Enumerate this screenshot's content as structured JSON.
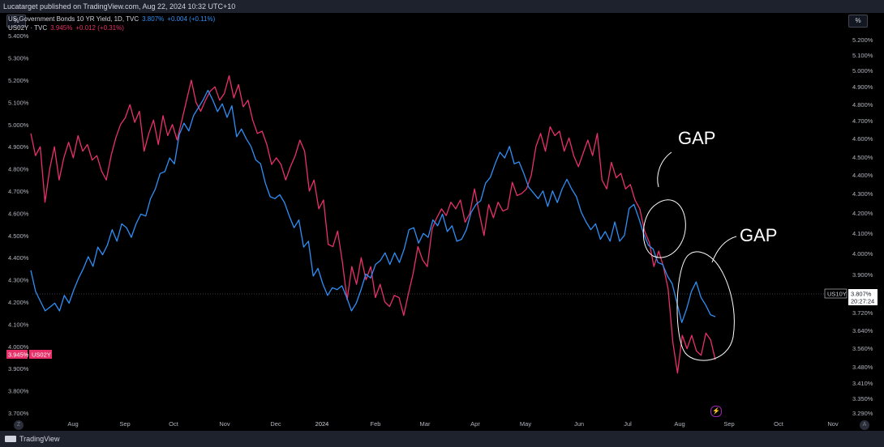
{
  "header": {
    "published": "Lucatarget published on TradingView.com, Aug 22, 2024 10:32 UTC+10"
  },
  "legend": {
    "row1": {
      "title": "US Government Bonds 10 YR Yield, 1D, TVC",
      "value": "3.807%",
      "change": "+0.004 (+0.11%)"
    },
    "row2": {
      "title": "US02Y · TVC",
      "value": "3.945%",
      "change": "+0.012 (+0.31%)"
    }
  },
  "unit_label": "%",
  "annotations": {
    "gap1": "GAP",
    "gap2": "GAP"
  },
  "footer": {
    "brand": "TradingView",
    "z": "Z",
    "a": "A",
    "flash": "⚡"
  },
  "colors": {
    "us10y": "#2f8ff5",
    "us02y": "#e8316a",
    "background": "#000000",
    "annotation": "#ffffff"
  },
  "chart_data": {
    "type": "line",
    "title": "US Government Bonds 10 YR Yield, 1D, TVC",
    "x_ticks": [
      "Aug",
      "Sep",
      "Oct",
      "Nov",
      "Dec",
      "2024",
      "Feb",
      "Mar",
      "Apr",
      "May",
      "Jun",
      "Jul",
      "Aug",
      "Sep",
      "Oct",
      "Nov"
    ],
    "left_axis": {
      "ticks": [
        "5.400%",
        "5.300%",
        "5.200%",
        "5.100%",
        "5.000%",
        "4.900%",
        "4.800%",
        "4.700%",
        "4.600%",
        "4.500%",
        "4.400%",
        "4.300%",
        "4.200%",
        "4.100%",
        "4.000%",
        "3.900%",
        "3.800%",
        "3.700%"
      ],
      "ylim": [
        3.67,
        5.43
      ]
    },
    "right_axis": {
      "ticks": [
        "5.200%",
        "5.100%",
        "5.000%",
        "4.900%",
        "4.800%",
        "4.700%",
        "4.600%",
        "4.500%",
        "4.400%",
        "4.300%",
        "4.200%",
        "4.100%",
        "4.000%",
        "3.900%",
        "3.720%",
        "3.640%",
        "3.560%",
        "3.480%",
        "3.410%",
        "3.350%",
        "3.290%"
      ]
    },
    "last_price": {
      "us10y_label": "US10Y",
      "us10y_value": "3.807%",
      "us10y_countdown": "20:27:24",
      "us02y_value": "3.945%",
      "us02y_label": "US02Y"
    },
    "series": [
      {
        "name": "US02Y",
        "axis": "left",
        "color": "#e8316a",
        "values": [
          4.96,
          4.86,
          4.9,
          4.65,
          4.8,
          4.9,
          4.75,
          4.85,
          4.92,
          4.85,
          4.95,
          4.88,
          4.91,
          4.84,
          4.86,
          4.79,
          4.75,
          4.86,
          4.94,
          5.0,
          5.03,
          5.09,
          5.01,
          5.06,
          4.88,
          4.96,
          5.02,
          4.91,
          5.04,
          4.95,
          5.0,
          4.93,
          5.02,
          5.11,
          5.2,
          5.1,
          5.06,
          5.11,
          5.15,
          5.17,
          5.11,
          5.14,
          5.22,
          5.12,
          5.18,
          5.08,
          5.11,
          5.02,
          4.96,
          4.97,
          4.91,
          4.82,
          4.85,
          4.82,
          4.75,
          4.81,
          4.86,
          4.93,
          4.88,
          4.7,
          4.75,
          4.62,
          4.66,
          4.46,
          4.45,
          4.52,
          4.38,
          4.21,
          4.36,
          4.28,
          4.4,
          4.3,
          4.36,
          4.22,
          4.28,
          4.2,
          4.18,
          4.23,
          4.22,
          4.14,
          4.24,
          4.33,
          4.45,
          4.39,
          4.36,
          4.53,
          4.58,
          4.62,
          4.59,
          4.65,
          4.62,
          4.66,
          4.56,
          4.6,
          4.71,
          4.6,
          4.5,
          4.64,
          4.58,
          4.65,
          4.61,
          4.62,
          4.74,
          4.68,
          4.69,
          4.71,
          4.77,
          4.9,
          4.96,
          4.88,
          4.99,
          4.95,
          4.97,
          4.88,
          4.94,
          4.86,
          4.81,
          4.87,
          4.93,
          4.86,
          4.96,
          4.75,
          4.71,
          4.83,
          4.76,
          4.78,
          4.71,
          4.73,
          4.66,
          4.62,
          4.52,
          4.47,
          4.36,
          4.43,
          4.36,
          4.26,
          4.02,
          3.88,
          4.05,
          3.99,
          4.05,
          3.98,
          3.96,
          4.06,
          4.03,
          3.94
        ]
      },
      {
        "name": "US10Y",
        "axis": "right",
        "color": "#2f8ff5",
        "values": [
          4.05,
          3.94,
          3.89,
          3.84,
          3.86,
          3.88,
          3.84,
          3.92,
          3.88,
          3.95,
          4.01,
          4.06,
          4.12,
          4.07,
          4.17,
          4.13,
          4.18,
          4.26,
          4.2,
          4.29,
          4.27,
          4.22,
          4.29,
          4.34,
          4.33,
          4.42,
          4.47,
          4.55,
          4.56,
          4.63,
          4.6,
          4.75,
          4.81,
          4.77,
          4.85,
          4.89,
          4.93,
          4.98,
          4.93,
          4.87,
          4.91,
          4.84,
          4.9,
          4.74,
          4.78,
          4.73,
          4.69,
          4.62,
          4.6,
          4.5,
          4.43,
          4.42,
          4.44,
          4.4,
          4.33,
          4.27,
          4.31,
          4.17,
          4.2,
          4.02,
          4.06,
          3.98,
          3.92,
          3.96,
          3.95,
          3.97,
          3.91,
          3.84,
          3.88,
          3.95,
          4.03,
          4.01,
          4.08,
          4.1,
          4.14,
          4.08,
          4.14,
          4.09,
          4.16,
          4.26,
          4.27,
          4.19,
          4.24,
          4.22,
          4.31,
          4.28,
          4.34,
          4.25,
          4.28,
          4.2,
          4.21,
          4.26,
          4.35,
          4.39,
          4.41,
          4.5,
          4.53,
          4.6,
          4.66,
          4.63,
          4.69,
          4.6,
          4.61,
          4.55,
          4.48,
          4.45,
          4.42,
          4.46,
          4.38,
          4.46,
          4.4,
          4.47,
          4.52,
          4.47,
          4.43,
          4.35,
          4.3,
          4.26,
          4.29,
          4.21,
          4.25,
          4.2,
          4.3,
          4.2,
          4.23,
          4.37,
          4.39,
          4.32,
          4.24,
          4.18,
          4.16,
          4.09,
          4.08,
          4.02,
          3.98,
          3.88,
          3.78,
          3.85,
          3.94,
          3.99,
          3.91,
          3.87,
          3.82,
          3.81
        ]
      }
    ]
  }
}
